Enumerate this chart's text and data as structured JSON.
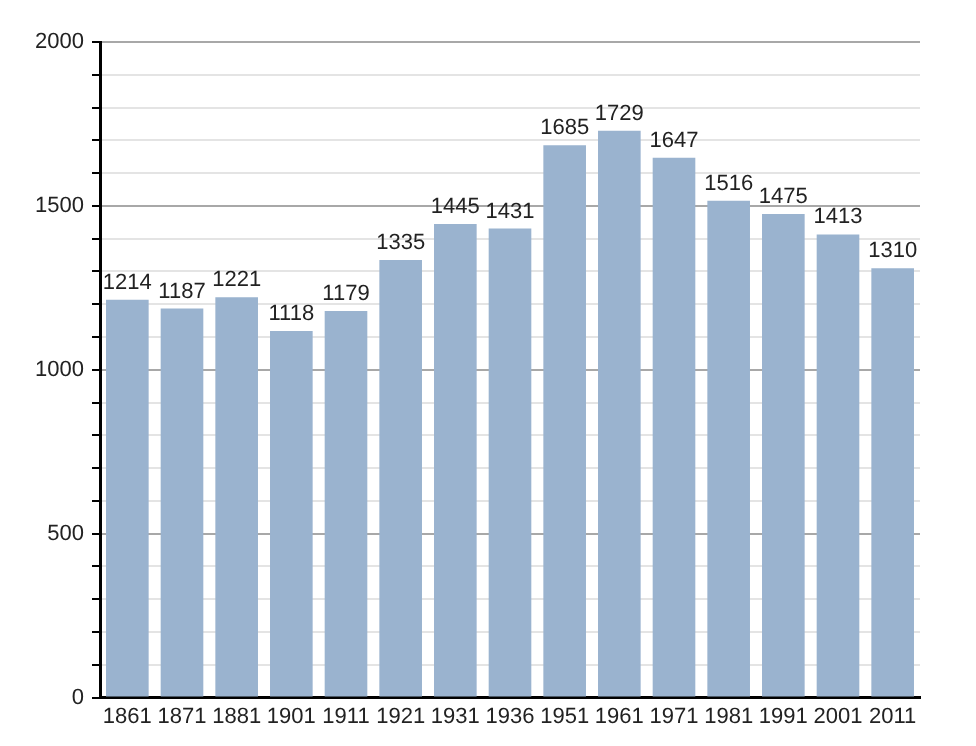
{
  "chart_data": {
    "type": "bar",
    "categories": [
      "1861",
      "1871",
      "1881",
      "1901",
      "1911",
      "1921",
      "1931",
      "1936",
      "1951",
      "1961",
      "1971",
      "1981",
      "1991",
      "2001",
      "2011"
    ],
    "values": [
      1214,
      1187,
      1221,
      1118,
      1179,
      1335,
      1445,
      1431,
      1685,
      1729,
      1647,
      1516,
      1475,
      1413,
      1310
    ],
    "color": "#9ab3cf",
    "ylim": [
      0,
      2000
    ],
    "yticks": [
      0,
      {
        "value": 100,
        "label": null
      },
      {
        "value": 200,
        "label": null
      },
      {
        "value": 300,
        "label": null
      },
      {
        "value": 400,
        "label": null
      },
      500,
      {
        "value": 600,
        "label": null
      },
      {
        "value": 700,
        "label": null
      },
      {
        "value": 800,
        "label": null
      },
      {
        "value": 900,
        "label": null
      },
      1000,
      {
        "value": 1100,
        "label": null
      },
      {
        "value": 1200,
        "label": null
      },
      {
        "value": 1300,
        "label": null
      },
      {
        "value": 1400,
        "label": null
      },
      1500,
      {
        "value": 1600,
        "label": null
      },
      {
        "value": 1700,
        "label": null
      },
      {
        "value": 1800,
        "label": null
      },
      {
        "value": 1900,
        "label": null
      },
      2000
    ],
    "grid": true,
    "data_labels": true
  }
}
